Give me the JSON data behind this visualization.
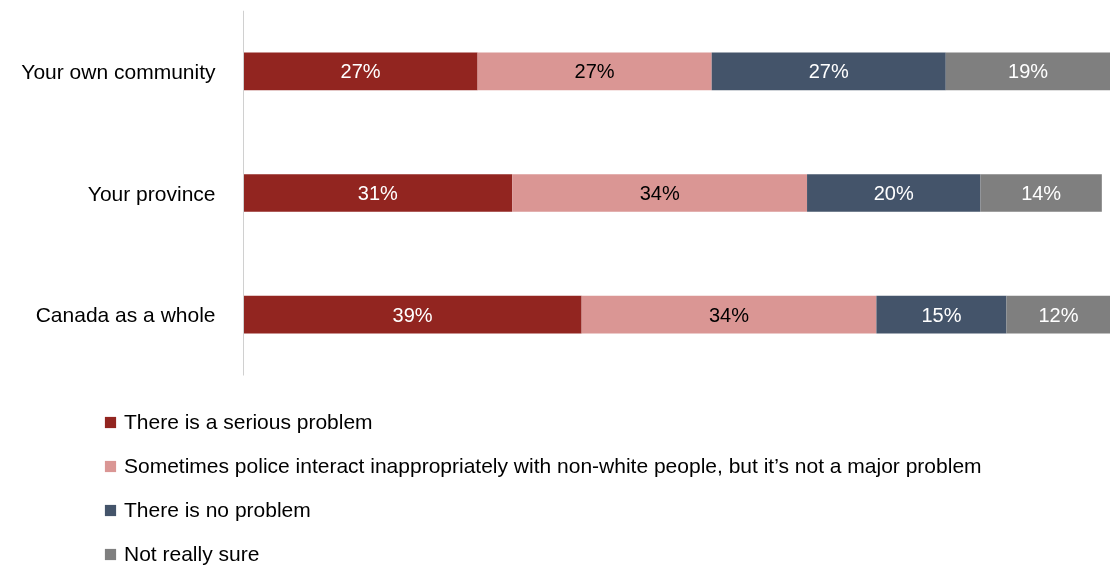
{
  "chart_data": {
    "type": "bar",
    "orientation": "horizontal",
    "stacked": true,
    "categories": [
      "Your own community",
      "Your province",
      "Canada as a whole"
    ],
    "series": [
      {
        "name": "There is a serious problem",
        "color": "#922520",
        "values": [
          27,
          31,
          39
        ],
        "value_labels": [
          "27%",
          "31%",
          "39%"
        ]
      },
      {
        "name": "Sometimes police interact inappropriately with non-white people, but it’s not a major problem",
        "color": "#da9694",
        "values": [
          27,
          34,
          34
        ],
        "value_labels": [
          "27%",
          "34%",
          "34%"
        ]
      },
      {
        "name": "There is no problem",
        "color": "#44546a",
        "values": [
          27,
          20,
          15
        ],
        "value_labels": [
          "27%",
          "20%",
          "15%"
        ]
      },
      {
        "name": "Not really sure",
        "color": "#7f7f7f",
        "values": [
          19,
          14,
          12
        ],
        "value_labels": [
          "19%",
          "14%",
          "12%"
        ]
      }
    ],
    "legend": "bottom",
    "tick_labels": "y"
  }
}
